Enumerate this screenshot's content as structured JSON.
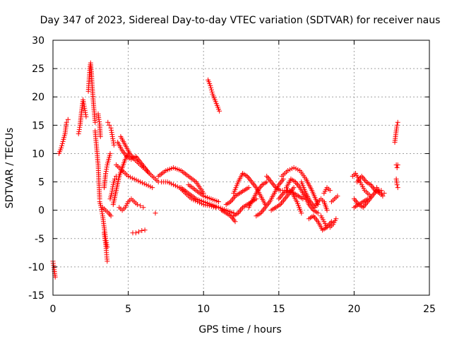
{
  "chart_data": {
    "type": "scatter",
    "title": "Day 347 of 2023, Sidereal Day-to-day VTEC variation (SDTVAR) for receiver naus",
    "xlabel": "GPS time / hours",
    "ylabel": "SDTVAR / TECUs",
    "xlim": [
      0,
      25
    ],
    "ylim": [
      -15,
      30
    ],
    "xticks": [
      0,
      5,
      10,
      15,
      20,
      25
    ],
    "xtick_labels": [
      "0",
      "5",
      "10",
      "15",
      "20",
      "25"
    ],
    "yticks": [
      -15,
      -10,
      -5,
      0,
      5,
      10,
      15,
      20,
      25,
      30
    ],
    "ytick_labels": [
      "-15",
      "-10",
      "-5",
      "0",
      "5",
      "10",
      "15",
      "20",
      "25",
      "30"
    ],
    "grid": true,
    "marker": "+",
    "color": "#ff0000",
    "segments": [
      {
        "x": [
          0.0,
          0.08,
          0.15
        ],
        "y": [
          -9.0,
          -10.5,
          -11.8
        ]
      },
      {
        "x": [
          0.4,
          0.55,
          0.7,
          0.8,
          0.9,
          1.0
        ],
        "y": [
          10.0,
          11.0,
          12.5,
          13.5,
          15.5,
          16.0
        ]
      },
      {
        "x": [
          1.7,
          1.8,
          1.9,
          2.0,
          2.1,
          2.2
        ],
        "y": [
          13.5,
          15.0,
          17.5,
          19.5,
          18.0,
          16.5
        ]
      },
      {
        "x": [
          2.35,
          2.4,
          2.45,
          2.5,
          2.55,
          2.6,
          2.7,
          2.8
        ],
        "y": [
          21.0,
          23.0,
          25.0,
          26.0,
          24.5,
          22.0,
          18.5,
          15.5
        ]
      },
      {
        "x": [
          2.8,
          2.9,
          3.0,
          3.05,
          3.1
        ],
        "y": [
          14.0,
          11.0,
          8.0,
          5.0,
          2.0
        ]
      },
      {
        "x": [
          3.0,
          3.05,
          3.1,
          3.15
        ],
        "y": [
          17.0,
          16.0,
          15.2,
          13.0
        ]
      },
      {
        "x": [
          3.1,
          3.2,
          3.3,
          3.4,
          3.5,
          3.6
        ],
        "y": [
          1.5,
          0.5,
          -1.0,
          -3.0,
          -5.0,
          -6.5
        ]
      },
      {
        "x": [
          3.4,
          3.5,
          3.55,
          3.6
        ],
        "y": [
          -4.0,
          -6.0,
          -7.5,
          -9.0
        ]
      },
      {
        "x": [
          3.3,
          3.5,
          3.7,
          3.85
        ],
        "y": [
          0.5,
          0.0,
          -0.5,
          -1.0
        ]
      },
      {
        "x": [
          3.4,
          3.5,
          3.6,
          3.7,
          3.8
        ],
        "y": [
          4.0,
          6.5,
          8.0,
          9.0,
          10.0
        ]
      },
      {
        "x": [
          3.65,
          3.75,
          3.85,
          3.95,
          4.05
        ],
        "y": [
          15.5,
          15.0,
          14.5,
          13.0,
          11.5
        ]
      },
      {
        "x": [
          3.8,
          3.9,
          4.0,
          4.1,
          4.2
        ],
        "y": [
          2.0,
          3.0,
          4.5,
          5.5,
          6.0
        ]
      },
      {
        "x": [
          4.0,
          4.2,
          4.4,
          4.6,
          4.8,
          5.0
        ],
        "y": [
          1.0,
          3.5,
          6.0,
          7.5,
          9.0,
          10.0
        ]
      },
      {
        "x": [
          4.3,
          4.6,
          4.9,
          5.2,
          5.5,
          5.8,
          6.1,
          6.4
        ],
        "y": [
          12.0,
          10.5,
          9.5,
          9.0,
          9.5,
          8.5,
          7.5,
          6.5
        ]
      },
      {
        "x": [
          4.5,
          4.8,
          5.1,
          5.4,
          5.8,
          6.2,
          6.6,
          7.0
        ],
        "y": [
          13.0,
          11.5,
          10.0,
          9.0,
          8.0,
          7.0,
          6.0,
          5.0
        ]
      },
      {
        "x": [
          4.2,
          4.6,
          5.0,
          5.4,
          5.8,
          6.2,
          6.6
        ],
        "y": [
          8.0,
          7.0,
          6.0,
          5.5,
          5.0,
          4.5,
          4.0
        ]
      },
      {
        "x": [
          4.4,
          4.6,
          4.8,
          5.0,
          5.2,
          5.4,
          5.6,
          5.8,
          6.0
        ],
        "y": [
          0.5,
          0.0,
          0.5,
          1.5,
          2.0,
          1.5,
          1.0,
          0.8,
          0.5
        ]
      },
      {
        "x": [
          5.3,
          5.5,
          5.7,
          5.9,
          6.1
        ],
        "y": [
          -4.0,
          -4.0,
          -3.8,
          -3.6,
          -3.5
        ]
      },
      {
        "x": [
          6.8
        ],
        "y": [
          -0.5
        ]
      },
      {
        "x": [
          7.0,
          7.5,
          8.0,
          8.5,
          9.0,
          9.5,
          10.0
        ],
        "y": [
          6.0,
          7.0,
          7.5,
          7.0,
          6.0,
          5.0,
          3.0
        ]
      },
      {
        "x": [
          7.2,
          7.6,
          8.0,
          8.4,
          8.8,
          9.2,
          9.6,
          10.0,
          10.4,
          10.8
        ],
        "y": [
          5.0,
          5.0,
          4.5,
          4.0,
          3.0,
          2.0,
          1.5,
          1.0,
          0.8,
          0.5
        ]
      },
      {
        "x": [
          8.5,
          9.0,
          9.5,
          10.0,
          10.5,
          11.0,
          11.5,
          12.0
        ],
        "y": [
          4.0,
          3.0,
          2.0,
          1.5,
          1.0,
          0.5,
          0.0,
          -0.5
        ]
      },
      {
        "x": [
          9.0,
          9.5,
          10.0,
          10.5,
          11.0
        ],
        "y": [
          4.5,
          3.5,
          2.5,
          2.0,
          1.5
        ]
      },
      {
        "x": [
          10.3,
          10.45,
          10.6,
          10.75,
          10.9,
          11.05
        ],
        "y": [
          23.0,
          22.0,
          20.5,
          19.5,
          18.5,
          17.5
        ]
      },
      {
        "x": [
          11.2,
          11.5,
          11.8,
          12.1
        ],
        "y": [
          0.0,
          -0.5,
          -1.0,
          -2.0
        ]
      },
      {
        "x": [
          11.5,
          11.8,
          12.1,
          12.4,
          12.7,
          13.0
        ],
        "y": [
          1.0,
          1.5,
          2.5,
          3.0,
          3.5,
          4.0
        ]
      },
      {
        "x": [
          12.0,
          12.3,
          12.6,
          12.9,
          13.2,
          13.5,
          13.8,
          14.1
        ],
        "y": [
          3.0,
          5.0,
          6.5,
          6.0,
          5.0,
          4.0,
          2.5,
          1.0
        ]
      },
      {
        "x": [
          12.0,
          12.3,
          12.6,
          12.9,
          13.2,
          13.5
        ],
        "y": [
          -1.0,
          -0.5,
          0.5,
          1.0,
          1.5,
          2.0
        ]
      },
      {
        "x": [
          13.0,
          13.3,
          13.6,
          13.9,
          14.2
        ],
        "y": [
          0.5,
          2.0,
          3.5,
          4.5,
          5.0
        ]
      },
      {
        "x": [
          13.5,
          13.8,
          14.1,
          14.4,
          14.7,
          15.0,
          15.3
        ],
        "y": [
          -1.0,
          -0.5,
          0.5,
          1.5,
          3.0,
          4.5,
          5.5
        ]
      },
      {
        "x": [
          14.2,
          14.5,
          14.8,
          15.1,
          15.4,
          15.7,
          16.0,
          16.3,
          16.6
        ],
        "y": [
          6.0,
          5.0,
          4.0,
          3.5,
          3.5,
          3.5,
          3.0,
          2.5,
          2.0
        ]
      },
      {
        "x": [
          14.5,
          14.8,
          15.1,
          15.4,
          15.7,
          16.0
        ],
        "y": [
          0.0,
          0.5,
          1.0,
          2.0,
          3.0,
          4.0
        ]
      },
      {
        "x": [
          15.2,
          15.6,
          16.0,
          16.4,
          16.8,
          17.2,
          17.6
        ],
        "y": [
          6.0,
          7.0,
          7.5,
          7.0,
          5.5,
          3.5,
          1.0
        ]
      },
      {
        "x": [
          15.5,
          15.8,
          16.1,
          16.4,
          16.7,
          17.0,
          17.3,
          17.6
        ],
        "y": [
          4.0,
          5.5,
          5.0,
          4.0,
          2.5,
          1.0,
          0.0,
          -0.5
        ]
      },
      {
        "x": [
          15.0,
          15.3,
          15.6,
          15.9,
          16.2,
          16.5
        ],
        "y": [
          2.0,
          3.0,
          3.5,
          3.0,
          1.5,
          -0.5
        ]
      },
      {
        "x": [
          16.5,
          16.8,
          17.1,
          17.4
        ],
        "y": [
          5.0,
          3.0,
          1.5,
          0.5
        ]
      },
      {
        "x": [
          17.0,
          17.3,
          17.6,
          17.9,
          18.2,
          18.5
        ],
        "y": [
          -1.5,
          -1.0,
          -2.0,
          -3.5,
          -3.0,
          -2.0
        ]
      },
      {
        "x": [
          17.4,
          17.6,
          17.8,
          18.0,
          18.2
        ],
        "y": [
          0.5,
          1.5,
          2.0,
          1.5,
          0.0
        ]
      },
      {
        "x": [
          17.8,
          18.0,
          18.2,
          18.4,
          18.6,
          18.8
        ],
        "y": [
          -1.0,
          -2.0,
          -3.0,
          -3.0,
          -2.5,
          -1.5
        ]
      },
      {
        "x": [
          18.0,
          18.2,
          18.4
        ],
        "y": [
          3.0,
          4.0,
          3.5
        ]
      },
      {
        "x": [
          18.5,
          18.7,
          18.9
        ],
        "y": [
          1.5,
          2.0,
          2.5
        ]
      },
      {
        "x": [
          19.9,
          20.1,
          20.3,
          20.5,
          20.7,
          20.9,
          21.1
        ],
        "y": [
          6.0,
          6.5,
          5.5,
          4.5,
          3.5,
          3.0,
          2.5
        ]
      },
      {
        "x": [
          20.0,
          20.3,
          20.6,
          20.9,
          21.2,
          21.5,
          21.8
        ],
        "y": [
          2.0,
          1.0,
          0.5,
          1.5,
          2.5,
          3.5,
          3.5
        ]
      },
      {
        "x": [
          20.2,
          20.5,
          20.8,
          21.1,
          21.4,
          21.7,
          22.0
        ],
        "y": [
          5.0,
          6.0,
          5.0,
          4.5,
          3.5,
          3.0,
          3.0
        ]
      },
      {
        "x": [
          20.0,
          20.3,
          20.6,
          20.9
        ],
        "y": [
          0.5,
          1.0,
          1.5,
          2.0
        ]
      },
      {
        "x": [
          21.5,
          21.7,
          21.9
        ],
        "y": [
          4.0,
          3.0,
          2.5
        ]
      },
      {
        "x": [
          22.7,
          22.75,
          22.8,
          22.85,
          22.9
        ],
        "y": [
          12.0,
          13.0,
          14.0,
          15.0,
          15.5
        ]
      },
      {
        "x": [
          22.8,
          22.85,
          22.9
        ],
        "y": [
          8.0,
          7.5,
          8.0
        ]
      },
      {
        "x": [
          22.8,
          22.85,
          22.9
        ],
        "y": [
          5.5,
          4.5,
          4.0
        ]
      }
    ]
  }
}
